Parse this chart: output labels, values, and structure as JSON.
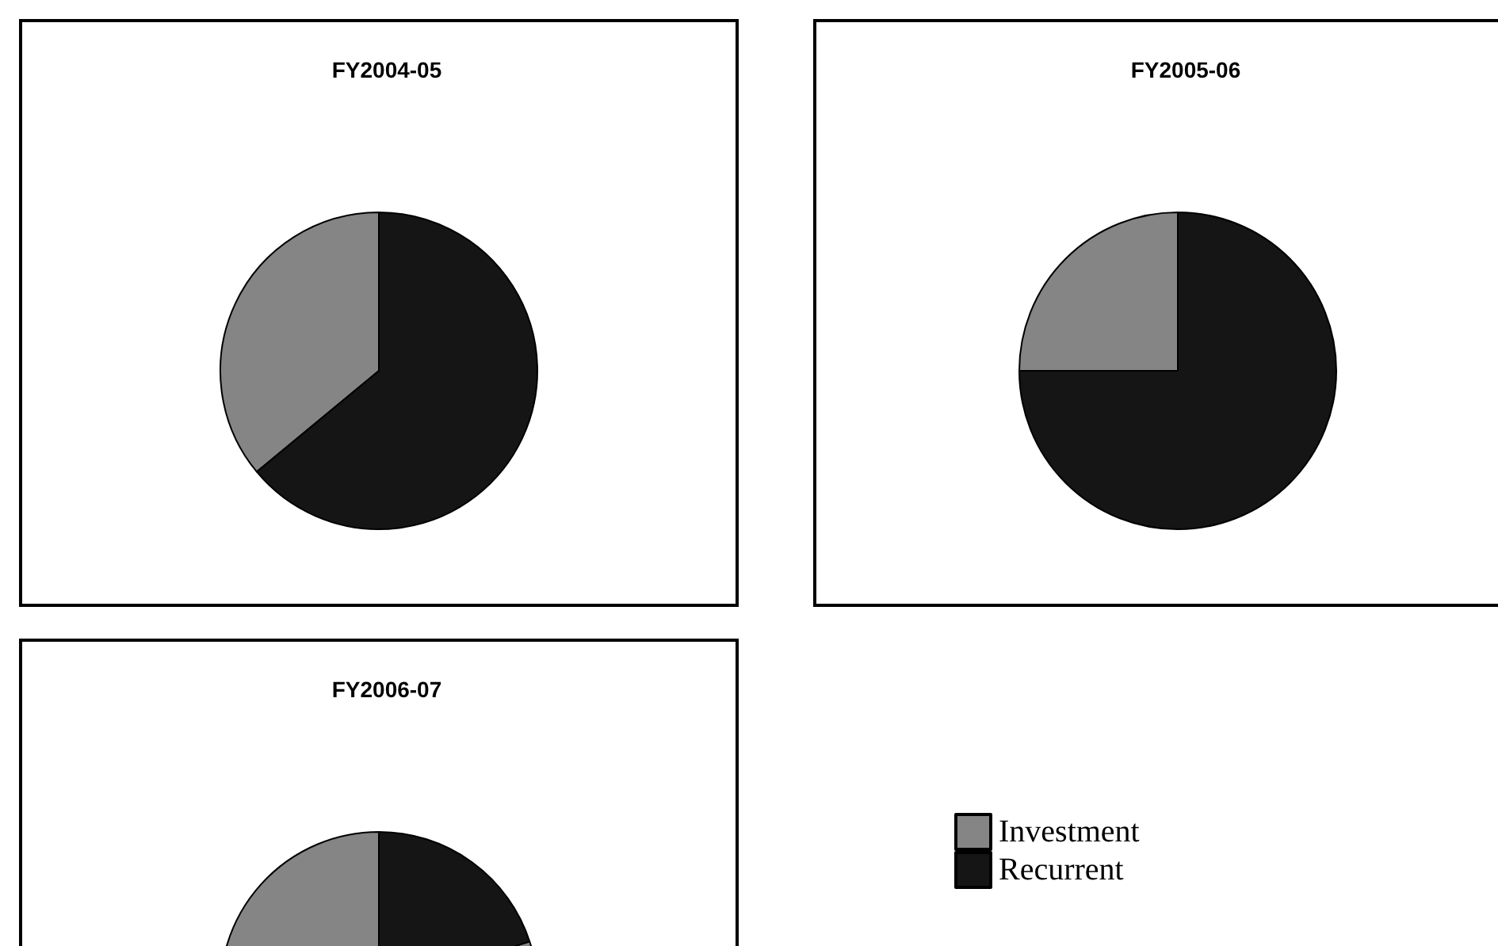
{
  "chart_data": [
    {
      "type": "pie",
      "title": "FY2004-05",
      "categories": [
        null,
        null
      ],
      "values": [
        36,
        64
      ],
      "colors": [
        "#858585",
        "#151515"
      ],
      "legend": false
    },
    {
      "type": "pie",
      "title": "FY2005-06",
      "categories": [
        null,
        null
      ],
      "values": [
        25,
        75
      ],
      "colors": [
        "#858585",
        "#151515"
      ],
      "legend": false
    },
    {
      "type": "pie",
      "title": "FY2006-07",
      "categories": [
        "Investment",
        "Recurrent"
      ],
      "values": [
        80,
        20
      ],
      "colors": [
        "#858585",
        "#151515"
      ],
      "legend": "right"
    }
  ]
}
